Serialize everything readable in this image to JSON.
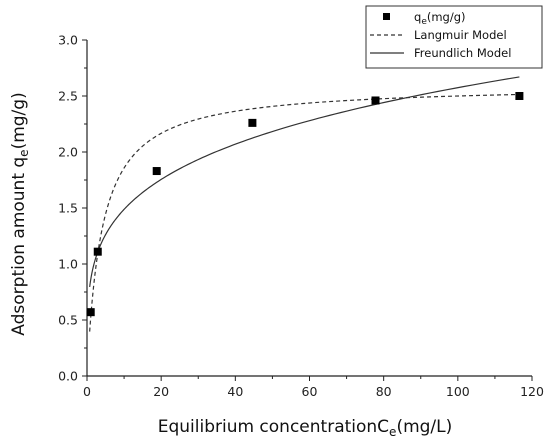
{
  "chart_data": {
    "type": "scatter",
    "xlabel": "Equilibrium concentrationC",
    "xlabel_sub": "e",
    "xlabel_tail": "(mg/L)",
    "ylabel": "Adsorption amount q",
    "ylabel_sub": "e",
    "ylabel_tail": "(mg/g)",
    "xlim": [
      0,
      120
    ],
    "ylim": [
      0.0,
      3.0
    ],
    "xticks": [
      0,
      20,
      40,
      60,
      80,
      100,
      120
    ],
    "yticks": [
      "0.0",
      "0.5",
      "1.0",
      "1.5",
      "2.0",
      "2.5",
      "3.0"
    ],
    "grid": false,
    "legend_position": "top-right",
    "series": [
      {
        "name": "q",
        "name_sub": "e",
        "name_tail": "(mg/g)",
        "kind": "scatter",
        "marker": "square",
        "color": "#000000",
        "x": [
          1.0,
          2.9,
          18.8,
          44.6,
          77.8,
          116.6
        ],
        "y": [
          0.57,
          1.11,
          1.83,
          2.26,
          2.46,
          2.5
        ]
      },
      {
        "name": "Langmuir Model",
        "kind": "line",
        "style": "dashed",
        "color": "#333333",
        "model": {
          "qmax": 2.6,
          "KL": 0.25
        }
      },
      {
        "name": "Freundlich Model",
        "kind": "line",
        "style": "solid",
        "color": "#333333",
        "model": {
          "KF": 0.86,
          "n": 4.2
        }
      }
    ]
  }
}
